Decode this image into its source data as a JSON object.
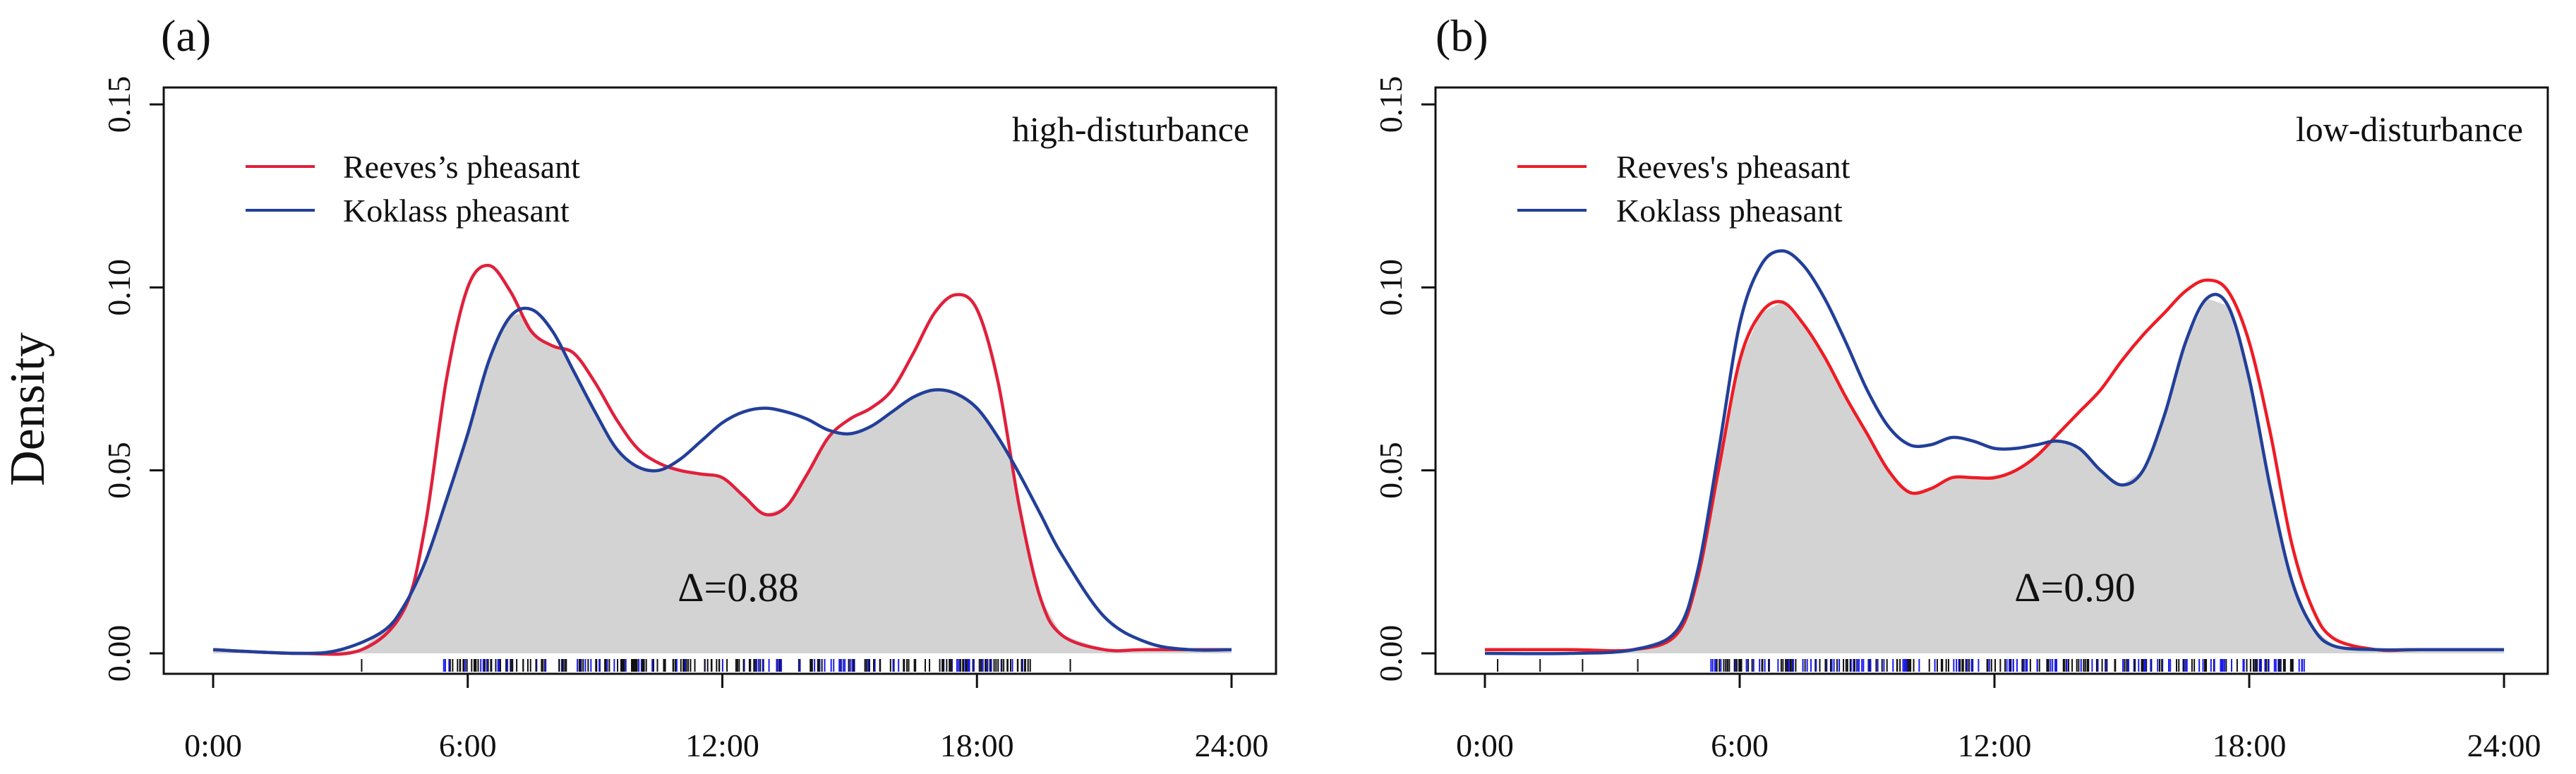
{
  "figure": {
    "ylabel": "Density",
    "x_ticks": [
      "0:00",
      "6:00",
      "12:00",
      "18:00",
      "24:00"
    ],
    "y_ticks": [
      "0.00",
      "0.05",
      "0.10",
      "0.15"
    ]
  },
  "chart_data": [
    {
      "type": "area",
      "panel_label": "(a)",
      "condition": "high-disturbance",
      "overlap_label": "Δ=0.88",
      "xlabel": "",
      "ylabel": "Density",
      "xlim": [
        0,
        24
      ],
      "ylim": [
        0,
        0.15
      ],
      "legend": {
        "position": "top-left",
        "items": [
          {
            "label": "Reeves’s pheasant",
            "color": "#E0203C"
          },
          {
            "label": "Koklass pheasant",
            "color": "#223F99"
          }
        ]
      },
      "overlap_fill": "#D3D3D3",
      "series": [
        {
          "name": "Reeves’s pheasant",
          "color": "#E0203C",
          "x": [
            0,
            2,
            3.5,
            4.5,
            5,
            5.5,
            6,
            6.5,
            7,
            7.5,
            8,
            8.5,
            9,
            9.5,
            10,
            10.5,
            11,
            11.5,
            12,
            12.5,
            13,
            13.5,
            14,
            14.5,
            15,
            15.5,
            16,
            16.5,
            17,
            17.5,
            18,
            18.5,
            19,
            19.5,
            20,
            21,
            22,
            24
          ],
          "values": [
            0.001,
            0.0,
            0.001,
            0.012,
            0.035,
            0.075,
            0.1,
            0.106,
            0.099,
            0.088,
            0.084,
            0.082,
            0.074,
            0.064,
            0.056,
            0.052,
            0.05,
            0.049,
            0.048,
            0.043,
            0.038,
            0.04,
            0.049,
            0.059,
            0.064,
            0.067,
            0.072,
            0.082,
            0.093,
            0.098,
            0.094,
            0.074,
            0.04,
            0.015,
            0.005,
            0.001,
            0.001,
            0.001
          ]
        },
        {
          "name": "Koklass pheasant",
          "color": "#223F99",
          "x": [
            0,
            2,
            3,
            4,
            4.5,
            5,
            5.5,
            6,
            6.5,
            7,
            7.5,
            8,
            8.5,
            9,
            9.5,
            10,
            10.5,
            11,
            11.5,
            12,
            12.5,
            13,
            13.5,
            14,
            14.5,
            15,
            15.5,
            16,
            16.5,
            17,
            17.5,
            18,
            18.5,
            19,
            19.5,
            20,
            21,
            22,
            23,
            24
          ],
          "values": [
            0.001,
            0.0,
            0.001,
            0.006,
            0.013,
            0.025,
            0.042,
            0.06,
            0.08,
            0.092,
            0.094,
            0.088,
            0.077,
            0.066,
            0.056,
            0.051,
            0.05,
            0.053,
            0.058,
            0.063,
            0.066,
            0.067,
            0.066,
            0.064,
            0.061,
            0.06,
            0.062,
            0.066,
            0.07,
            0.072,
            0.071,
            0.067,
            0.059,
            0.049,
            0.038,
            0.027,
            0.01,
            0.003,
            0.001,
            0.001
          ]
        }
      ]
    },
    {
      "type": "area",
      "panel_label": "(b)",
      "condition": "low-disturbance",
      "overlap_label": "Δ=0.90",
      "xlabel": "",
      "ylabel": "",
      "xlim": [
        0,
        24
      ],
      "ylim": [
        0,
        0.15
      ],
      "legend": {
        "position": "top-left",
        "items": [
          {
            "label": "Reeves's pheasant",
            "color": "#EE1C25"
          },
          {
            "label": "Koklass pheasant",
            "color": "#223F99"
          }
        ]
      },
      "overlap_fill": "#D3D3D3",
      "series": [
        {
          "name": "Reeves's pheasant",
          "color": "#EE1C25",
          "x": [
            0,
            2,
            3.5,
            4.5,
            5,
            5.5,
            6,
            6.5,
            7,
            7.5,
            8,
            8.5,
            9,
            9.5,
            10,
            10.5,
            11,
            11.5,
            12,
            12.5,
            13,
            13.5,
            14,
            14.5,
            15,
            15.5,
            16,
            16.5,
            17,
            17.5,
            18,
            18.5,
            19,
            19.5,
            20,
            21,
            22,
            24
          ],
          "values": [
            0.001,
            0.001,
            0.001,
            0.005,
            0.02,
            0.05,
            0.08,
            0.093,
            0.096,
            0.09,
            0.081,
            0.07,
            0.06,
            0.05,
            0.044,
            0.045,
            0.048,
            0.048,
            0.048,
            0.05,
            0.054,
            0.06,
            0.066,
            0.072,
            0.08,
            0.087,
            0.093,
            0.099,
            0.102,
            0.099,
            0.085,
            0.06,
            0.03,
            0.012,
            0.004,
            0.001,
            0.001,
            0.001
          ]
        },
        {
          "name": "Koklass pheasant",
          "color": "#223F99",
          "x": [
            0,
            2,
            3.5,
            4.5,
            5,
            5.5,
            6,
            6.5,
            7,
            7.5,
            8,
            8.5,
            9,
            9.5,
            10,
            10.5,
            11,
            11.5,
            12,
            12.5,
            13,
            13.5,
            14,
            14.5,
            15,
            15.5,
            16,
            16.5,
            17,
            17.5,
            18,
            18.5,
            19,
            19.5,
            20,
            21,
            22,
            24
          ],
          "values": [
            0.0,
            0.0,
            0.001,
            0.006,
            0.022,
            0.055,
            0.09,
            0.106,
            0.11,
            0.106,
            0.097,
            0.085,
            0.072,
            0.062,
            0.057,
            0.057,
            0.059,
            0.058,
            0.056,
            0.056,
            0.057,
            0.058,
            0.056,
            0.05,
            0.046,
            0.05,
            0.065,
            0.085,
            0.097,
            0.095,
            0.075,
            0.045,
            0.02,
            0.007,
            0.002,
            0.001,
            0.001,
            0.001
          ]
        }
      ]
    }
  ]
}
